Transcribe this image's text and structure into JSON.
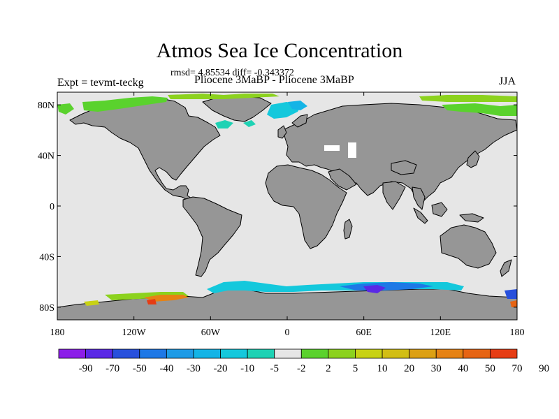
{
  "title": "Atmos Sea Ice Concentration",
  "stats": "rmsd= 4.85534 diff= -0.343372",
  "left_label": "Expt = tevmt-teckg",
  "center_label": "Pliocene   3MaBP - Pliocene   3MaBP",
  "season": "JJA",
  "map": {
    "lat_ticks": [
      {
        "label": "80N",
        "value": 80
      },
      {
        "label": "40N",
        "value": 40
      },
      {
        "label": "0",
        "value": 0
      },
      {
        "label": "40S",
        "value": -40
      },
      {
        "label": "80S",
        "value": -80
      }
    ],
    "lon_ticks": [
      {
        "label": "180",
        "value": -180
      },
      {
        "label": "120W",
        "value": -120
      },
      {
        "label": "60W",
        "value": -60
      },
      {
        "label": "0",
        "value": 0
      },
      {
        "label": "60E",
        "value": 60
      },
      {
        "label": "120E",
        "value": 120
      },
      {
        "label": "180",
        "value": 180
      }
    ],
    "colors": {
      "ocean": "#e6e6e6",
      "land": "#969696",
      "coast": "#000000"
    }
  },
  "colorbar": {
    "colors": [
      "#8c1ee8",
      "#5a28e6",
      "#2850dc",
      "#1e78e6",
      "#1e9be6",
      "#14b4e6",
      "#14c8dc",
      "#1ed2b4",
      "#e6e6e6",
      "#5ad22d",
      "#8cd21e",
      "#c8d214",
      "#d2be14",
      "#dca014",
      "#e68214",
      "#e66414",
      "#e63c14"
    ],
    "labels": [
      "-90",
      "-70",
      "-50",
      "-40",
      "-30",
      "-20",
      "-10",
      "-5",
      "-2",
      "2",
      "5",
      "10",
      "20",
      "30",
      "40",
      "50",
      "70",
      "90"
    ]
  }
}
